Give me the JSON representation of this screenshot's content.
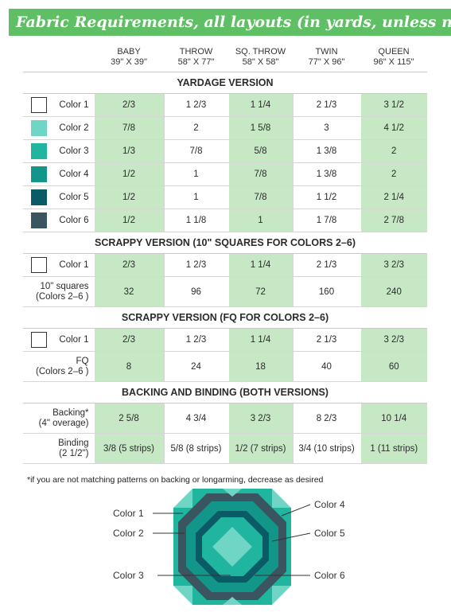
{
  "title": "Fabric Requirements, all layouts (in yards, unless noted)",
  "columns": [
    {
      "name": "BABY",
      "size": "39\" X 39\""
    },
    {
      "name": "THROW",
      "size": "58\" X 77\""
    },
    {
      "name": "SQ. THROW",
      "size": "58\" X 58\""
    },
    {
      "name": "TWIN",
      "size": "77\" X 96\""
    },
    {
      "name": "QUEEN",
      "size": "96\" X 115\""
    }
  ],
  "sections": {
    "yardage": {
      "title": "YARDAGE VERSION",
      "rows": [
        {
          "label": "Color 1",
          "swatch": "#ffffff",
          "values": [
            "2/3",
            "1 2/3",
            "1 1/4",
            "2 1/3",
            "3 1/2"
          ]
        },
        {
          "label": "Color 2",
          "swatch": "#6fd6c6",
          "values": [
            "7/8",
            "2",
            "1 5/8",
            "3",
            "4 1/2"
          ]
        },
        {
          "label": "Color 3",
          "swatch": "#1fb59e",
          "values": [
            "1/3",
            "7/8",
            "5/8",
            "1 3/8",
            "2"
          ]
        },
        {
          "label": "Color 4",
          "swatch": "#13968a",
          "values": [
            "1/2",
            "1",
            "7/8",
            "1 3/8",
            "2"
          ]
        },
        {
          "label": "Color 5",
          "swatch": "#0b5b66",
          "values": [
            "1/2",
            "1",
            "7/8",
            "1 1/2",
            "2 1/4"
          ]
        },
        {
          "label": "Color 6",
          "swatch": "#3a5460",
          "values": [
            "1/2",
            "1 1/8",
            "1",
            "1 7/8",
            "2 7/8"
          ]
        }
      ]
    },
    "scrappy10": {
      "title": "SCRAPPY VERSION (10\" SQUARES FOR COLORS 2–6)",
      "color1": {
        "label": "Color 1",
        "values": [
          "2/3",
          "1 2/3",
          "1 1/4",
          "2 1/3",
          "3 2/3"
        ]
      },
      "squares": {
        "label1": "10\" squares",
        "label2": "(Colors 2–6 )",
        "values": [
          "32",
          "96",
          "72",
          "160",
          "240"
        ]
      }
    },
    "scrappyfq": {
      "title": "SCRAPPY VERSION (FQ FOR COLORS 2–6)",
      "color1": {
        "label": "Color 1",
        "values": [
          "2/3",
          "1 2/3",
          "1 1/4",
          "2 1/3",
          "3 2/3"
        ]
      },
      "fq": {
        "label1": "FQ",
        "label2": "(Colors 2–6 )",
        "values": [
          "8",
          "24",
          "18",
          "40",
          "60"
        ]
      }
    },
    "backing": {
      "title": "BACKING AND BINDING (BOTH VERSIONS)",
      "backing": {
        "label1": "Backing*",
        "label2": "(4\" overage)",
        "values": [
          "2 5/8",
          "4 3/4",
          "3 2/3",
          "8 2/3",
          "10 1/4"
        ]
      },
      "binding": {
        "label1": "Binding",
        "label2": "(2 1/2\")",
        "values": [
          "3/8 (5 strips)",
          "5/8 (8 strips)",
          "1/2 (7 strips)",
          "3/4 (10 strips)",
          "1 (11 strips)"
        ]
      }
    }
  },
  "note": "*if you are not matching patterns on backing or longarming, decrease as desired",
  "diagram": {
    "labels": {
      "c1": "Color 1",
      "c2": "Color 2",
      "c3": "Color 3",
      "c4": "Color 4",
      "c5": "Color 5",
      "c6": "Color 6"
    }
  },
  "colors": {
    "banner": "#5fbf64",
    "cell_green": "#c6e8c5"
  }
}
